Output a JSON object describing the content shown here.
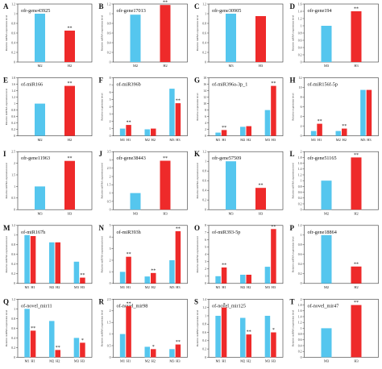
{
  "colors": {
    "blue": "#55c6ee",
    "red": "#ee2a2a",
    "sig": "#222222"
  },
  "chart_data": [
    {
      "label": "A",
      "title": "ofr-gene43925",
      "type": "bar",
      "ylabel": "Relative mRNA expression level",
      "ylim": [
        0,
        1.2
      ],
      "yticks": [
        0,
        0.2,
        0.4,
        0.6,
        0.8,
        1.0,
        1.2
      ],
      "groups": [
        {
          "bars": [
            {
              "name": "M2",
              "value": 1.0,
              "color": "blue"
            },
            {
              "name": "H2",
              "value": 0.65,
              "color": "red",
              "sig": "**"
            }
          ]
        }
      ]
    },
    {
      "label": "B",
      "title": "ofr-gene17013",
      "type": "bar",
      "ylabel": "Relative mRNA expression level",
      "ylim": [
        0,
        1.2
      ],
      "yticks": [
        0,
        0.2,
        0.4,
        0.6,
        0.8,
        1.0,
        1.2
      ],
      "groups": [
        {
          "bars": [
            {
              "name": "M2",
              "value": 0.98,
              "color": "blue"
            },
            {
              "name": "H2",
              "value": 1.18,
              "color": "red",
              "sig": "**"
            }
          ]
        }
      ]
    },
    {
      "label": "C",
      "title": "ofr-gene30905",
      "type": "bar",
      "ylabel": "Relative mRNA expression level",
      "ylim": [
        0,
        1.2
      ],
      "yticks": [
        0,
        0.2,
        0.4,
        0.6,
        0.8,
        1.0,
        1.2
      ],
      "groups": [
        {
          "bars": [
            {
              "name": "M3",
              "value": 1.0,
              "color": "blue"
            },
            {
              "name": "H3",
              "value": 0.95,
              "color": "red"
            }
          ]
        }
      ]
    },
    {
      "label": "D",
      "title": "ofr-gene194",
      "type": "bar",
      "ylabel": "Relative mRNA expression level",
      "ylim": [
        0,
        1.6
      ],
      "yticks": [
        0,
        0.2,
        0.4,
        0.6,
        0.8,
        1.0,
        1.2,
        1.4,
        1.6
      ],
      "groups": [
        {
          "bars": [
            {
              "name": "M3",
              "value": 1.0,
              "color": "blue"
            },
            {
              "name": "H3",
              "value": 1.4,
              "color": "red",
              "sig": "**"
            }
          ]
        }
      ]
    },
    {
      "label": "E",
      "title": "of-miR166",
      "type": "bar",
      "ylabel": "Relative miRNA expression level",
      "ylim": [
        0,
        1.8
      ],
      "yticks": [
        0,
        0.2,
        0.4,
        0.6,
        0.8,
        1.0,
        1.2,
        1.4,
        1.6,
        1.8
      ],
      "groups": [
        {
          "bars": [
            {
              "name": "M2",
              "value": 1.0,
              "color": "blue"
            },
            {
              "name": "H2",
              "value": 1.55,
              "color": "red",
              "sig": "**"
            }
          ]
        }
      ]
    },
    {
      "label": "F",
      "title": "of-miR396b",
      "type": "bar",
      "ylabel": "Relative expression level",
      "ylim": [
        0,
        8
      ],
      "yticks": [
        0,
        1,
        2,
        3,
        4,
        5,
        6,
        7,
        8
      ],
      "groups": [
        {
          "bars": [
            {
              "name": "M1",
              "value": 1.0,
              "color": "blue"
            },
            {
              "name": "H1",
              "value": 1.5,
              "color": "red",
              "sig": "**"
            }
          ]
        },
        {
          "bars": [
            {
              "name": "M2",
              "value": 0.9,
              "color": "blue"
            },
            {
              "name": "H2",
              "value": 1.0,
              "color": "red"
            }
          ]
        },
        {
          "bars": [
            {
              "name": "M3",
              "value": 6.5,
              "color": "blue"
            },
            {
              "name": "H3",
              "value": 4.5,
              "color": "red",
              "sig": "**"
            }
          ]
        }
      ]
    },
    {
      "label": "G",
      "title": "of-miR396a-3p_1",
      "type": "bar",
      "ylabel": "Relative expression level",
      "ylim": [
        0,
        18
      ],
      "yticks": [
        0,
        2,
        4,
        6,
        8,
        10,
        12,
        14,
        16,
        18
      ],
      "groups": [
        {
          "bars": [
            {
              "name": "M1",
              "value": 1.0,
              "color": "blue"
            },
            {
              "name": "H1",
              "value": 1.8,
              "color": "red",
              "sig": "**"
            }
          ]
        },
        {
          "bars": [
            {
              "name": "M2",
              "value": 2.8,
              "color": "blue"
            },
            {
              "name": "H2",
              "value": 3.0,
              "color": "red"
            }
          ]
        },
        {
          "bars": [
            {
              "name": "M3",
              "value": 8.0,
              "color": "blue"
            },
            {
              "name": "H3",
              "value": 15.5,
              "color": "red",
              "sig": "**"
            }
          ]
        }
      ]
    },
    {
      "label": "H",
      "title": "of-miR156f-5p",
      "type": "bar",
      "ylabel": "Relative expression level",
      "ylim": [
        0,
        12
      ],
      "yticks": [
        0,
        2,
        4,
        6,
        8,
        10,
        12
      ],
      "groups": [
        {
          "bars": [
            {
              "name": "M1",
              "value": 1.0,
              "color": "blue"
            },
            {
              "name": "H1",
              "value": 2.5,
              "color": "red",
              "sig": "**"
            }
          ]
        },
        {
          "bars": [
            {
              "name": "M2",
              "value": 1.0,
              "color": "blue"
            },
            {
              "name": "H2",
              "value": 1.5,
              "color": "red",
              "sig": "**"
            }
          ]
        },
        {
          "bars": [
            {
              "name": "M3",
              "value": 9.5,
              "color": "blue"
            },
            {
              "name": "H3",
              "value": 9.5,
              "color": "red"
            }
          ]
        }
      ]
    },
    {
      "label": "I",
      "title": "ofr-gene11963",
      "type": "bar",
      "ylabel": "Relative mRNA expression level",
      "ylim": [
        0,
        2.5
      ],
      "yticks": [
        0,
        0.5,
        1.0,
        1.5,
        2.0,
        2.5
      ],
      "groups": [
        {
          "bars": [
            {
              "name": "M3",
              "value": 1.0,
              "color": "blue"
            },
            {
              "name": "H3",
              "value": 2.1,
              "color": "red",
              "sig": "**"
            }
          ]
        }
      ]
    },
    {
      "label": "J",
      "title": "ofr-gene38443",
      "type": "bar",
      "ylabel": "Relative mRNA expression level",
      "ylim": [
        0,
        3.5
      ],
      "yticks": [
        0,
        0.5,
        1.0,
        1.5,
        2.0,
        2.5,
        3.0,
        3.5
      ],
      "groups": [
        {
          "bars": [
            {
              "name": "M3",
              "value": 1.0,
              "color": "blue"
            },
            {
              "name": "H3",
              "value": 2.95,
              "color": "red",
              "sig": "**"
            }
          ]
        }
      ]
    },
    {
      "label": "K",
      "title": "ofr-gene57509",
      "type": "bar",
      "ylabel": "Relative mRNA expression level",
      "ylim": [
        0,
        1.2
      ],
      "yticks": [
        0,
        0.2,
        0.4,
        0.6,
        0.8,
        1.0,
        1.2
      ],
      "groups": [
        {
          "bars": [
            {
              "name": "M3",
              "value": 1.0,
              "color": "blue"
            },
            {
              "name": "H3",
              "value": 0.45,
              "color": "red",
              "sig": "**"
            }
          ]
        }
      ]
    },
    {
      "label": "L",
      "title": "ofr-gene51165",
      "type": "bar",
      "ylabel": "Relative mRNA expression level",
      "ylim": [
        0,
        2.0
      ],
      "yticks": [
        0,
        0.2,
        0.4,
        0.6,
        0.8,
        1.0,
        1.2,
        1.4,
        1.6,
        1.8,
        2.0
      ],
      "groups": [
        {
          "bars": [
            {
              "name": "M2",
              "value": 1.0,
              "color": "blue"
            },
            {
              "name": "H2",
              "value": 1.8,
              "color": "red",
              "sig": "**"
            }
          ]
        }
      ]
    },
    {
      "label": "M",
      "title": "of-miR167h",
      "type": "bar",
      "ylabel": "Relative miRNA expression level",
      "ylim": [
        0,
        1.2
      ],
      "yticks": [
        0,
        0.2,
        0.4,
        0.6,
        0.8,
        1.0,
        1.2
      ],
      "groups": [
        {
          "bars": [
            {
              "name": "M1",
              "value": 1.0,
              "color": "blue"
            },
            {
              "name": "H1",
              "value": 0.98,
              "color": "red"
            }
          ]
        },
        {
          "bars": [
            {
              "name": "M2",
              "value": 0.85,
              "color": "blue"
            },
            {
              "name": "H2",
              "value": 0.85,
              "color": "red"
            }
          ]
        },
        {
          "bars": [
            {
              "name": "M3",
              "value": 0.45,
              "color": "blue"
            },
            {
              "name": "H3",
              "value": 0.12,
              "color": "red",
              "sig": "**"
            }
          ]
        }
      ]
    },
    {
      "label": "N",
      "title": "of-miR393h",
      "type": "bar",
      "ylabel": "Relative miRNA expression level",
      "ylim": [
        0,
        5
      ],
      "yticks": [
        0,
        1,
        2,
        3,
        4,
        5
      ],
      "groups": [
        {
          "bars": [
            {
              "name": "M1",
              "value": 1.0,
              "color": "blue"
            },
            {
              "name": "H1",
              "value": 2.3,
              "color": "red",
              "sig": "**"
            }
          ]
        },
        {
          "bars": [
            {
              "name": "M2",
              "value": 0.6,
              "color": "blue"
            },
            {
              "name": "H2",
              "value": 0.9,
              "color": "red",
              "sig": "**"
            }
          ]
        },
        {
          "bars": [
            {
              "name": "M3",
              "value": 2.0,
              "color": "blue"
            },
            {
              "name": "H3",
              "value": 4.5,
              "color": "red",
              "sig": "**"
            }
          ]
        }
      ]
    },
    {
      "label": "O",
      "title": "of-miR393-5p",
      "type": "bar",
      "ylabel": "Relative miRNA expression level",
      "ylim": [
        0,
        8
      ],
      "yticks": [
        0,
        1,
        2,
        3,
        4,
        5,
        6,
        7,
        8
      ],
      "groups": [
        {
          "bars": [
            {
              "name": "M1",
              "value": 1.0,
              "color": "blue"
            },
            {
              "name": "H1",
              "value": 2.2,
              "color": "red",
              "sig": "**"
            }
          ]
        },
        {
          "bars": [
            {
              "name": "M2",
              "value": 1.2,
              "color": "blue"
            },
            {
              "name": "H2",
              "value": 1.2,
              "color": "red"
            }
          ]
        },
        {
          "bars": [
            {
              "name": "M3",
              "value": 2.3,
              "color": "blue"
            },
            {
              "name": "H3",
              "value": 7.5,
              "color": "red",
              "sig": "**"
            }
          ]
        }
      ]
    },
    {
      "label": "P",
      "title": "ofr-gene18864",
      "type": "bar",
      "ylabel": "Relative mRNA expression level",
      "ylim": [
        0,
        1.2
      ],
      "yticks": [
        0,
        0.2,
        0.4,
        0.6,
        0.8,
        1.0,
        1.2
      ],
      "groups": [
        {
          "bars": [
            {
              "name": "M2",
              "value": 1.0,
              "color": "blue"
            },
            {
              "name": "H2",
              "value": 0.35,
              "color": "red",
              "sig": "**"
            }
          ]
        }
      ]
    },
    {
      "label": "Q",
      "title": "of-novel_mir11",
      "type": "bar",
      "ylabel": "Relative miRNA expression level",
      "ylim": [
        0,
        1.2
      ],
      "yticks": [
        0,
        0.2,
        0.4,
        0.6,
        0.8,
        1.0,
        1.2
      ],
      "groups": [
        {
          "bars": [
            {
              "name": "M1",
              "value": 1.0,
              "color": "blue"
            },
            {
              "name": "H1",
              "value": 0.55,
              "color": "red",
              "sig": "**"
            }
          ]
        },
        {
          "bars": [
            {
              "name": "M2",
              "value": 0.75,
              "color": "blue"
            },
            {
              "name": "H2",
              "value": 0.15,
              "color": "red",
              "sig": "**"
            }
          ]
        },
        {
          "bars": [
            {
              "name": "M3",
              "value": 0.4,
              "color": "blue"
            },
            {
              "name": "H3",
              "value": 0.3,
              "color": "red",
              "sig": "*"
            }
          ]
        }
      ]
    },
    {
      "label": "R",
      "title": "of-novel_mir98",
      "type": "bar",
      "ylabel": "Relative miRNA expression level",
      "ylim": [
        0,
        2.5
      ],
      "yticks": [
        0,
        0.5,
        1.0,
        1.5,
        2.0,
        2.5
      ],
      "groups": [
        {
          "bars": [
            {
              "name": "M1",
              "value": 1.0,
              "color": "blue"
            },
            {
              "name": "H1",
              "value": 2.2,
              "color": "red",
              "sig": "**"
            }
          ]
        },
        {
          "bars": [
            {
              "name": "M2",
              "value": 0.45,
              "color": "blue"
            },
            {
              "name": "H2",
              "value": 0.35,
              "color": "red",
              "sig": "*"
            }
          ]
        },
        {
          "bars": [
            {
              "name": "M3",
              "value": 0.35,
              "color": "blue"
            },
            {
              "name": "H3",
              "value": 0.55,
              "color": "red",
              "sig": "**"
            }
          ]
        }
      ]
    },
    {
      "label": "S",
      "title": "of-novel_mir125",
      "type": "bar",
      "ylabel": "Relative miRNA expression level",
      "ylim": [
        0,
        1.4
      ],
      "yticks": [
        0,
        0.2,
        0.4,
        0.6,
        0.8,
        1.0,
        1.2,
        1.4
      ],
      "groups": [
        {
          "bars": [
            {
              "name": "M1",
              "value": 1.0,
              "color": "blue"
            },
            {
              "name": "H1",
              "value": 1.2,
              "color": "red",
              "sig": "*"
            }
          ]
        },
        {
          "bars": [
            {
              "name": "M2",
              "value": 0.95,
              "color": "blue"
            },
            {
              "name": "H2",
              "value": 0.55,
              "color": "red",
              "sig": "**"
            }
          ]
        },
        {
          "bars": [
            {
              "name": "M3",
              "value": 1.0,
              "color": "blue"
            },
            {
              "name": "H3",
              "value": 0.6,
              "color": "red",
              "sig": "*"
            }
          ]
        }
      ]
    },
    {
      "label": "T",
      "title": "of-novel_mir47",
      "type": "bar",
      "ylabel": "Relative miRNA expression level",
      "ylim": [
        0,
        2.0
      ],
      "yticks": [
        0,
        0.2,
        0.4,
        0.6,
        0.8,
        1.0,
        1.2,
        1.4,
        1.6,
        1.8,
        2.0
      ],
      "groups": [
        {
          "bars": [
            {
              "name": "M3",
              "value": 1.0,
              "color": "blue"
            },
            {
              "name": "H3",
              "value": 1.8,
              "color": "red",
              "sig": "**"
            }
          ]
        }
      ]
    }
  ]
}
